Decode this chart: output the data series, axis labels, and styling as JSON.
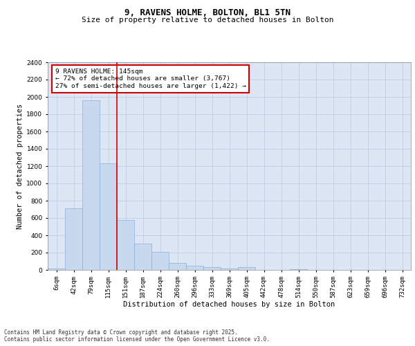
{
  "title_line1": "9, RAVENS HOLME, BOLTON, BL1 5TN",
  "title_line2": "Size of property relative to detached houses in Bolton",
  "xlabel": "Distribution of detached houses by size in Bolton",
  "ylabel": "Number of detached properties",
  "categories": [
    "6sqm",
    "42sqm",
    "79sqm",
    "115sqm",
    "151sqm",
    "187sqm",
    "224sqm",
    "260sqm",
    "296sqm",
    "333sqm",
    "369sqm",
    "405sqm",
    "442sqm",
    "478sqm",
    "514sqm",
    "550sqm",
    "587sqm",
    "623sqm",
    "659sqm",
    "696sqm",
    "732sqm"
  ],
  "values": [
    15,
    710,
    1960,
    1230,
    575,
    305,
    205,
    80,
    45,
    30,
    20,
    30,
    0,
    0,
    5,
    0,
    0,
    0,
    0,
    0,
    0
  ],
  "bar_color": "#c8d8ee",
  "bar_edge_color": "#8ab0d8",
  "vline_color": "#cc0000",
  "annotation_text": "9 RAVENS HOLME: 145sqm\n← 72% of detached houses are smaller (3,767)\n27% of semi-detached houses are larger (1,422) →",
  "annotation_box_color": "#cc0000",
  "ylim": [
    0,
    2400
  ],
  "yticks": [
    0,
    200,
    400,
    600,
    800,
    1000,
    1200,
    1400,
    1600,
    1800,
    2000,
    2200,
    2400
  ],
  "grid_color": "#b8c8e0",
  "background_color": "#dce6f5",
  "fig_background": "#ffffff",
  "footer_text": "Contains HM Land Registry data © Crown copyright and database right 2025.\nContains public sector information licensed under the Open Government Licence v3.0.",
  "title_fontsize": 9,
  "subtitle_fontsize": 8,
  "axis_label_fontsize": 7.5,
  "tick_fontsize": 6.5,
  "annotation_fontsize": 6.8,
  "footer_fontsize": 5.5
}
